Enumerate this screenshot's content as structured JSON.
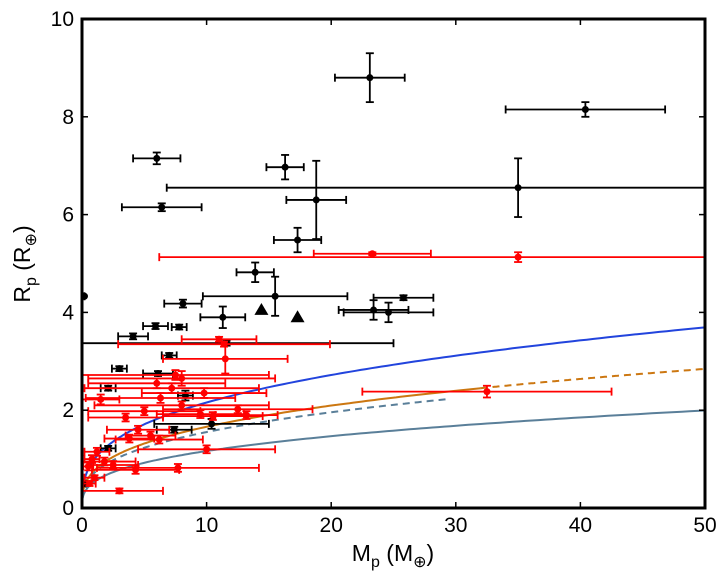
{
  "chart_data": {
    "type": "scatter",
    "title": "",
    "xlabel": {
      "main": "M",
      "sub": "p",
      "unit": "M",
      "unit_symbol": "⊕"
    },
    "ylabel": {
      "main": "R",
      "sub": "p",
      "unit": "R",
      "unit_symbol": "⊕"
    },
    "xlim": [
      0,
      50
    ],
    "ylim": [
      0,
      10
    ],
    "xticks": [
      0,
      10,
      20,
      30,
      40,
      50
    ],
    "yticks": [
      0,
      2,
      4,
      6,
      8,
      10
    ],
    "grid": false,
    "colors": {
      "black_series": "#000000",
      "red_series": "#ff0000",
      "curve_blue": "#2244dd",
      "curve_orange": "#cc7711",
      "curve_slate": "#5a7f99"
    },
    "curves": [
      {
        "name": "blue-curve",
        "color": "#2244dd",
        "dash": false,
        "a": 1.0,
        "b": 0.334
      },
      {
        "name": "orange-curve",
        "color": "#cc7711",
        "dash": false,
        "a": 0.77,
        "b": 0.334,
        "x_max": 32
      },
      {
        "name": "orange-dashed-curve",
        "color": "#cc7711",
        "dash": true,
        "a": 0.77,
        "b": 0.334,
        "x_min": 32
      },
      {
        "name": "slate-dashed-curve",
        "color": "#5a7f99",
        "dash": true,
        "a": 0.72,
        "b": 0.334,
        "x_max": 29.5
      },
      {
        "name": "slate-curve",
        "color": "#5a7f99",
        "dash": false,
        "a": 0.54,
        "b": 0.334
      }
    ],
    "series": [
      {
        "name": "black",
        "marker": "dot",
        "points": [
          {
            "x": 23.1,
            "y": 8.8,
            "xerr": [
              2.8,
              2.8
            ],
            "yerr": [
              0.5,
              0.5
            ]
          },
          {
            "x": 40.4,
            "y": 8.15,
            "xerr": [
              6.4,
              6.4
            ],
            "yerr": [
              0.15,
              0.15
            ]
          },
          {
            "x": 6.0,
            "y": 7.15,
            "xerr": [
              1.9,
              1.9
            ],
            "yerr": [
              0.12,
              0.12
            ]
          },
          {
            "x": 16.3,
            "y": 6.97,
            "xerr": [
              1.5,
              1.5
            ],
            "yerr": [
              0.25,
              0.25
            ]
          },
          {
            "x": 18.8,
            "y": 6.3,
            "xerr": [
              2.4,
              2.4
            ],
            "yerr": [
              0.8,
              0.8
            ]
          },
          {
            "x": 35.0,
            "y": 6.55,
            "xerr": [
              28.2,
              28.2
            ],
            "yerr": [
              0.6,
              0.6
            ]
          },
          {
            "x": 6.4,
            "y": 6.15,
            "xerr": [
              3.2,
              3.2
            ],
            "yerr": [
              0.08,
              0.08
            ]
          },
          {
            "x": 17.3,
            "y": 5.48,
            "xerr": [
              1.9,
              1.9
            ],
            "yerr": [
              0.25,
              0.25
            ]
          },
          {
            "x": 13.9,
            "y": 4.82,
            "xerr": [
              1.5,
              1.5
            ],
            "yerr": [
              0.2,
              0.2
            ]
          },
          {
            "x": 15.5,
            "y": 4.33,
            "xerr": [
              5.8,
              5.8
            ],
            "yerr": [
              0.4,
              0.4
            ]
          },
          {
            "x": 0.2,
            "y": 4.33,
            "xerr": [
              0.2,
              0.0
            ],
            "yerr": [
              0.0,
              0.0
            ]
          },
          {
            "x": 8.1,
            "y": 4.18,
            "xerr": [
              1.5,
              1.5
            ],
            "yerr": [
              0.08,
              0.08
            ]
          },
          {
            "x": 25.8,
            "y": 4.3,
            "xerr": [
              2.4,
              2.4
            ],
            "yerr": [
              0.05,
              0.05
            ]
          },
          {
            "x": 23.4,
            "y": 4.05,
            "xerr": [
              2.8,
              2.8
            ],
            "yerr": [
              0.2,
              0.2
            ]
          },
          {
            "x": 24.6,
            "y": 4.0,
            "xerr": [
              3.6,
              3.6
            ],
            "yerr": [
              0.2,
              0.2
            ]
          },
          {
            "x": 11.3,
            "y": 3.9,
            "xerr": [
              1.8,
              1.8
            ],
            "yerr": [
              0.22,
              0.22
            ]
          },
          {
            "x": 5.9,
            "y": 3.72,
            "xerr": [
              1.0,
              1.0
            ],
            "yerr": [
              0.06,
              0.06
            ]
          },
          {
            "x": 7.8,
            "y": 3.7,
            "xerr": [
              0.6,
              0.6
            ],
            "yerr": [
              0.05,
              0.05
            ]
          },
          {
            "x": 4.1,
            "y": 3.51,
            "xerr": [
              1.2,
              1.2
            ],
            "yerr": [
              0.06,
              0.06
            ]
          },
          {
            "x": 11.6,
            "y": 3.37,
            "xerr": [
              13.4,
              13.4
            ],
            "yerr": [
              0.05,
              0.05
            ]
          },
          {
            "x": 7.0,
            "y": 3.12,
            "xerr": [
              0.6,
              0.6
            ],
            "yerr": [
              0.05,
              0.05
            ]
          },
          {
            "x": 3.0,
            "y": 2.85,
            "xerr": [
              0.6,
              0.6
            ],
            "yerr": [
              0.05,
              0.05
            ]
          },
          {
            "x": 6.1,
            "y": 2.75,
            "xerr": [
              1.2,
              1.2
            ],
            "yerr": [
              0.05,
              0.05
            ]
          },
          {
            "x": 2.1,
            "y": 2.45,
            "xerr": [
              0.6,
              0.6
            ],
            "yerr": [
              0.05,
              0.05
            ]
          },
          {
            "x": 8.3,
            "y": 2.3,
            "xerr": [
              0.6,
              0.6
            ],
            "yerr": [
              0.1,
              0.1
            ]
          },
          {
            "x": 7.4,
            "y": 1.6,
            "xerr": [
              1.4,
              1.4
            ],
            "yerr": [
              0.06,
              0.06
            ]
          },
          {
            "x": 10.4,
            "y": 1.72,
            "xerr": [
              4.6,
              4.6
            ],
            "yerr": [
              0.1,
              0.1
            ]
          },
          {
            "x": 2.1,
            "y": 1.22,
            "xerr": [
              0.6,
              0.6
            ],
            "yerr": [
              0.05,
              0.05
            ]
          },
          {
            "x": 0.2,
            "y": 0.5,
            "xerr": [
              0.1,
              0.1
            ],
            "yerr": [
              0.05,
              0.05
            ]
          }
        ]
      },
      {
        "name": "black-triangles",
        "marker": "triangle",
        "points": [
          {
            "x": 14.4,
            "y": 4.05
          },
          {
            "x": 17.3,
            "y": 3.9
          }
        ]
      },
      {
        "name": "red",
        "marker": "dot",
        "points": [
          {
            "x": 23.3,
            "y": 5.2,
            "xerr": [
              4.7,
              4.7
            ],
            "yerr": [
              0.03,
              0.03
            ]
          },
          {
            "x": 35.0,
            "y": 5.13,
            "xerr": [
              28.8,
              28.8
            ],
            "yerr": [
              0.1,
              0.1
            ]
          },
          {
            "x": 11.0,
            "y": 3.45,
            "xerr": [
              3.0,
              3.0
            ],
            "yerr": [
              0.05,
              0.05
            ]
          },
          {
            "x": 11.4,
            "y": 3.35,
            "xerr": [
              8.5,
              8.5
            ],
            "yerr": [
              0.05,
              0.05
            ]
          },
          {
            "x": 11.5,
            "y": 3.05,
            "xerr": [
              5.0,
              5.0
            ],
            "yerr": [
              0.3,
              0.3
            ]
          },
          {
            "x": 32.5,
            "y": 2.38,
            "xerr": [
              10.0,
              10.0
            ],
            "yerr": [
              0.12,
              0.12
            ]
          },
          {
            "x": 7.5,
            "y": 2.72,
            "xerr": [
              7.5,
              7.5
            ],
            "yerr": [
              0.1,
              0.1
            ]
          },
          {
            "x": 8.0,
            "y": 2.65,
            "xerr": [
              7.5,
              7.5
            ],
            "yerr": [
              0.15,
              0.15
            ]
          },
          {
            "x": 6.0,
            "y": 2.55,
            "xerr": [
              5.5,
              5.5
            ],
            "yerr": [
              0.1,
              0.1
            ]
          },
          {
            "x": 7.2,
            "y": 2.45,
            "xerr": [
              7.0,
              7.0
            ],
            "yerr": [
              0.1,
              0.1
            ]
          },
          {
            "x": 9.8,
            "y": 2.35,
            "xerr": [
              5.0,
              5.0
            ],
            "yerr": [
              0.1,
              0.1
            ]
          },
          {
            "x": 6.3,
            "y": 2.25,
            "xerr": [
              6.0,
              6.0
            ],
            "yerr": [
              0.1,
              0.1
            ]
          },
          {
            "x": 1.5,
            "y": 2.22,
            "xerr": [
              1.5,
              1.5
            ],
            "yerr": [
              0.1,
              0.1
            ]
          },
          {
            "x": 8.0,
            "y": 2.1,
            "xerr": [
              7.0,
              7.0
            ],
            "yerr": [
              0.08,
              0.08
            ]
          },
          {
            "x": 12.5,
            "y": 2.02,
            "xerr": [
              6.0,
              6.0
            ],
            "yerr": [
              0.08,
              0.08
            ]
          },
          {
            "x": 5.0,
            "y": 1.98,
            "xerr": [
              4.5,
              4.5
            ],
            "yerr": [
              0.08,
              0.08
            ]
          },
          {
            "x": 9.5,
            "y": 1.92,
            "xerr": [
              3.5,
              3.5
            ],
            "yerr": [
              0.08,
              0.08
            ]
          },
          {
            "x": 3.5,
            "y": 1.85,
            "xerr": [
              3.0,
              3.0
            ],
            "yerr": [
              0.08,
              0.08
            ]
          },
          {
            "x": 10.5,
            "y": 1.88,
            "xerr": [
              4.0,
              4.0
            ],
            "yerr": [
              0.08,
              0.08
            ]
          },
          {
            "x": 13.2,
            "y": 1.9,
            "xerr": [
              2.5,
              2.5
            ],
            "yerr": [
              0.08,
              0.08
            ]
          },
          {
            "x": 4.5,
            "y": 1.6,
            "xerr": [
              2.5,
              2.5
            ],
            "yerr": [
              0.08,
              0.08
            ]
          },
          {
            "x": 5.5,
            "y": 1.48,
            "xerr": [
              2.0,
              2.0
            ],
            "yerr": [
              0.08,
              0.08
            ]
          },
          {
            "x": 6.2,
            "y": 1.4,
            "xerr": [
              3.5,
              3.5
            ],
            "yerr": [
              0.08,
              0.08
            ]
          },
          {
            "x": 3.8,
            "y": 1.42,
            "xerr": [
              2.0,
              2.0
            ],
            "yerr": [
              0.08,
              0.08
            ]
          },
          {
            "x": 10.0,
            "y": 1.2,
            "xerr": [
              5.5,
              5.5
            ],
            "yerr": [
              0.08,
              0.08
            ]
          },
          {
            "x": 1.2,
            "y": 1.15,
            "xerr": [
              1.0,
              1.0
            ],
            "yerr": [
              0.08,
              0.08
            ]
          },
          {
            "x": 0.8,
            "y": 1.0,
            "xerr": [
              0.6,
              0.6
            ],
            "yerr": [
              0.08,
              0.08
            ]
          },
          {
            "x": 1.8,
            "y": 0.95,
            "xerr": [
              2.5,
              2.5
            ],
            "yerr": [
              0.08,
              0.08
            ]
          },
          {
            "x": 2.5,
            "y": 0.88,
            "xerr": [
              2.0,
              2.0
            ],
            "yerr": [
              0.08,
              0.08
            ]
          },
          {
            "x": 0.5,
            "y": 0.85,
            "xerr": [
              0.4,
              0.4
            ],
            "yerr": [
              0.08,
              0.08
            ]
          },
          {
            "x": 7.7,
            "y": 0.82,
            "xerr": [
              6.5,
              6.5
            ],
            "yerr": [
              0.08,
              0.08
            ]
          },
          {
            "x": 4.3,
            "y": 0.78,
            "xerr": [
              3.5,
              3.5
            ],
            "yerr": [
              0.08,
              0.08
            ]
          },
          {
            "x": 1.0,
            "y": 0.62,
            "xerr": [
              0.8,
              0.8
            ],
            "yerr": [
              0.05,
              0.05
            ]
          },
          {
            "x": 0.6,
            "y": 0.5,
            "xerr": [
              0.5,
              0.5
            ],
            "yerr": [
              0.05,
              0.05
            ]
          },
          {
            "x": 3.0,
            "y": 0.35,
            "xerr": [
              3.5,
              3.5
            ],
            "yerr": [
              0.05,
              0.05
            ]
          }
        ]
      }
    ]
  }
}
